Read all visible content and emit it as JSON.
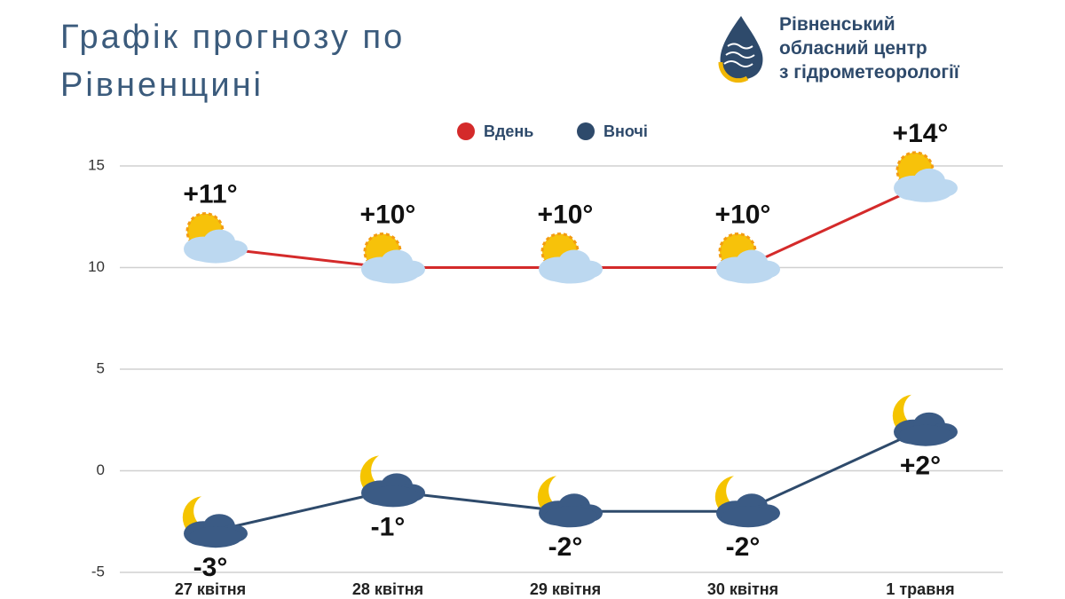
{
  "chart_data": {
    "type": "line",
    "title": "Графік прогнозу по Рівненщині",
    "logo_lines": [
      "Рівненський",
      "обласний центр",
      "з гідрометеорології"
    ],
    "categories": [
      "27 квітня",
      "28 квітня",
      "29 квітня",
      "30 квітня",
      "1 травня"
    ],
    "series": [
      {
        "name": "Вдень",
        "color": "#d42a2a",
        "values": [
          11,
          10,
          10,
          10,
          14
        ],
        "value_labels": [
          "+11°",
          "+10°",
          "+10°",
          "+10°",
          "+14°"
        ]
      },
      {
        "name": "Вночі",
        "color": "#2e4a6b",
        "values": [
          -3,
          -1,
          -2,
          -2,
          2
        ],
        "value_labels": [
          "-3°",
          "-1°",
          "-2°",
          "-2°",
          "+2°"
        ]
      }
    ],
    "ylim": [
      -5,
      15
    ],
    "yticks": [
      -5,
      0,
      5,
      10,
      15
    ],
    "grid": true,
    "legend": "top"
  }
}
